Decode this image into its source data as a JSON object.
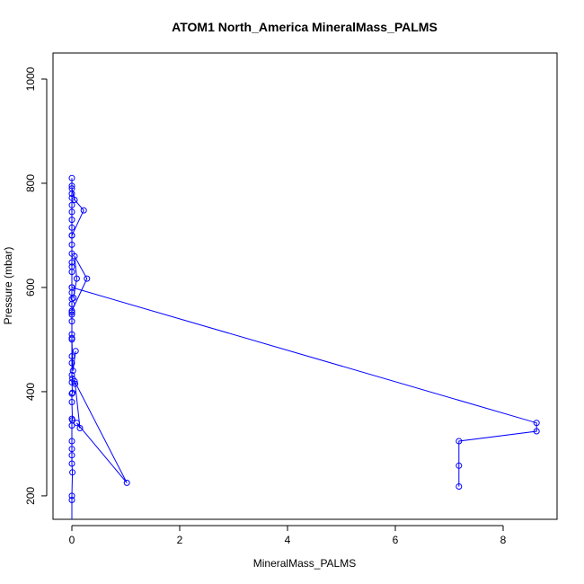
{
  "chart_data": {
    "type": "line",
    "title": "ATOM1 North_America MineralMass_PALMS",
    "xlabel": "MineralMass_PALMS",
    "ylabel": "Pressure (mbar)",
    "xlim": [
      -0.35,
      9.0
    ],
    "ylim": [
      1050,
      155
    ],
    "y_reversed": true,
    "x_ticks": [
      0,
      2,
      4,
      6,
      8
    ],
    "y_ticks": [
      200,
      400,
      600,
      800,
      1000
    ],
    "grid": false,
    "color": "#0000ff",
    "series": [
      {
        "values": [
          [
            0.0,
            155
          ],
          [
            0.0,
            192
          ],
          [
            0.0,
            200
          ],
          [
            0.01,
            245
          ],
          [
            0.0,
            262
          ],
          [
            0.0,
            278
          ],
          [
            0.0,
            290
          ],
          [
            0.0,
            305
          ],
          [
            0.0,
            335
          ],
          [
            0.0,
            348
          ],
          [
            0.01,
            345
          ],
          [
            0.0,
            380
          ],
          [
            0.0,
            396
          ],
          [
            0.01,
            398
          ],
          [
            0.0,
            418
          ],
          [
            0.01,
            425
          ],
          [
            0.0,
            432
          ],
          [
            0.0,
            455
          ],
          [
            0.0,
            468
          ],
          [
            0.0,
            503
          ],
          [
            0.0,
            510
          ],
          [
            0.0,
            535
          ],
          [
            0.0,
            548
          ],
          [
            0.0,
            552
          ],
          [
            0.0,
            568
          ],
          [
            0.0,
            578
          ],
          [
            0.0,
            590
          ],
          [
            0.0,
            600
          ],
          [
            0.0,
            630
          ],
          [
            0.0,
            640
          ],
          [
            0.0,
            648
          ],
          [
            0.0,
            665
          ],
          [
            0.0,
            682
          ],
          [
            0.0,
            700
          ],
          [
            0.0,
            715
          ],
          [
            0.0,
            730
          ],
          [
            0.0,
            745
          ],
          [
            0.0,
            758
          ],
          [
            0.0,
            772
          ],
          [
            0.0,
            780
          ],
          [
            0.0,
            795
          ],
          [
            0.0,
            810
          ]
        ]
      },
      {
        "values": [
          [
            0.06,
            415
          ],
          [
            0.15,
            330
          ],
          [
            0.09,
            340
          ],
          [
            1.02,
            225
          ],
          [
            0.05,
            420
          ]
        ]
      },
      {
        "values": [
          [
            7.18,
            218
          ],
          [
            7.18,
            258
          ],
          [
            7.18,
            305
          ],
          [
            8.62,
            324
          ],
          [
            8.62,
            340
          ],
          [
            0.0,
            600
          ]
        ]
      },
      {
        "values": [
          [
            0.0,
            555
          ],
          [
            0.28,
            617
          ],
          [
            0.05,
            660
          ],
          [
            0.09,
            617
          ],
          [
            0.03,
            580
          ]
        ]
      },
      {
        "values": [
          [
            0.0,
            700
          ],
          [
            0.22,
            748
          ],
          [
            0.05,
            768
          ],
          [
            0.0,
            790
          ]
        ]
      },
      {
        "values": [
          [
            0.07,
            478
          ],
          [
            0.02,
            440
          ],
          [
            0.0,
            500
          ]
        ]
      }
    ]
  }
}
